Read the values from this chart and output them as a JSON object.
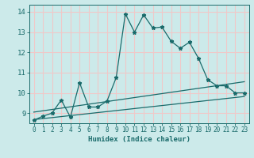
{
  "xlabel": "Humidex (Indice chaleur)",
  "xlim": [
    -0.5,
    23.5
  ],
  "ylim": [
    8.5,
    14.35
  ],
  "yticks": [
    9,
    10,
    11,
    12,
    13,
    14
  ],
  "xticks": [
    0,
    1,
    2,
    3,
    4,
    5,
    6,
    7,
    8,
    9,
    10,
    11,
    12,
    13,
    14,
    15,
    16,
    17,
    18,
    19,
    20,
    21,
    22,
    23
  ],
  "bg_color": "#cceaea",
  "grid_color": "#f0c8c8",
  "line_color": "#1a6b6b",
  "main_x": [
    0,
    1,
    2,
    3,
    4,
    5,
    6,
    7,
    8,
    9,
    10,
    11,
    12,
    13,
    14,
    15,
    16,
    17,
    18,
    19,
    20,
    21,
    22,
    23
  ],
  "main_y": [
    8.65,
    8.85,
    9.0,
    9.65,
    8.8,
    10.5,
    9.3,
    9.3,
    9.6,
    10.75,
    13.9,
    13.0,
    13.85,
    13.2,
    13.25,
    12.55,
    12.2,
    12.5,
    11.7,
    10.65,
    10.35,
    10.35,
    10.0,
    10.0
  ],
  "trend1_x": [
    0,
    23
  ],
  "trend1_y": [
    9.05,
    10.55
  ],
  "trend2_x": [
    0,
    23
  ],
  "trend2_y": [
    8.68,
    9.82
  ]
}
